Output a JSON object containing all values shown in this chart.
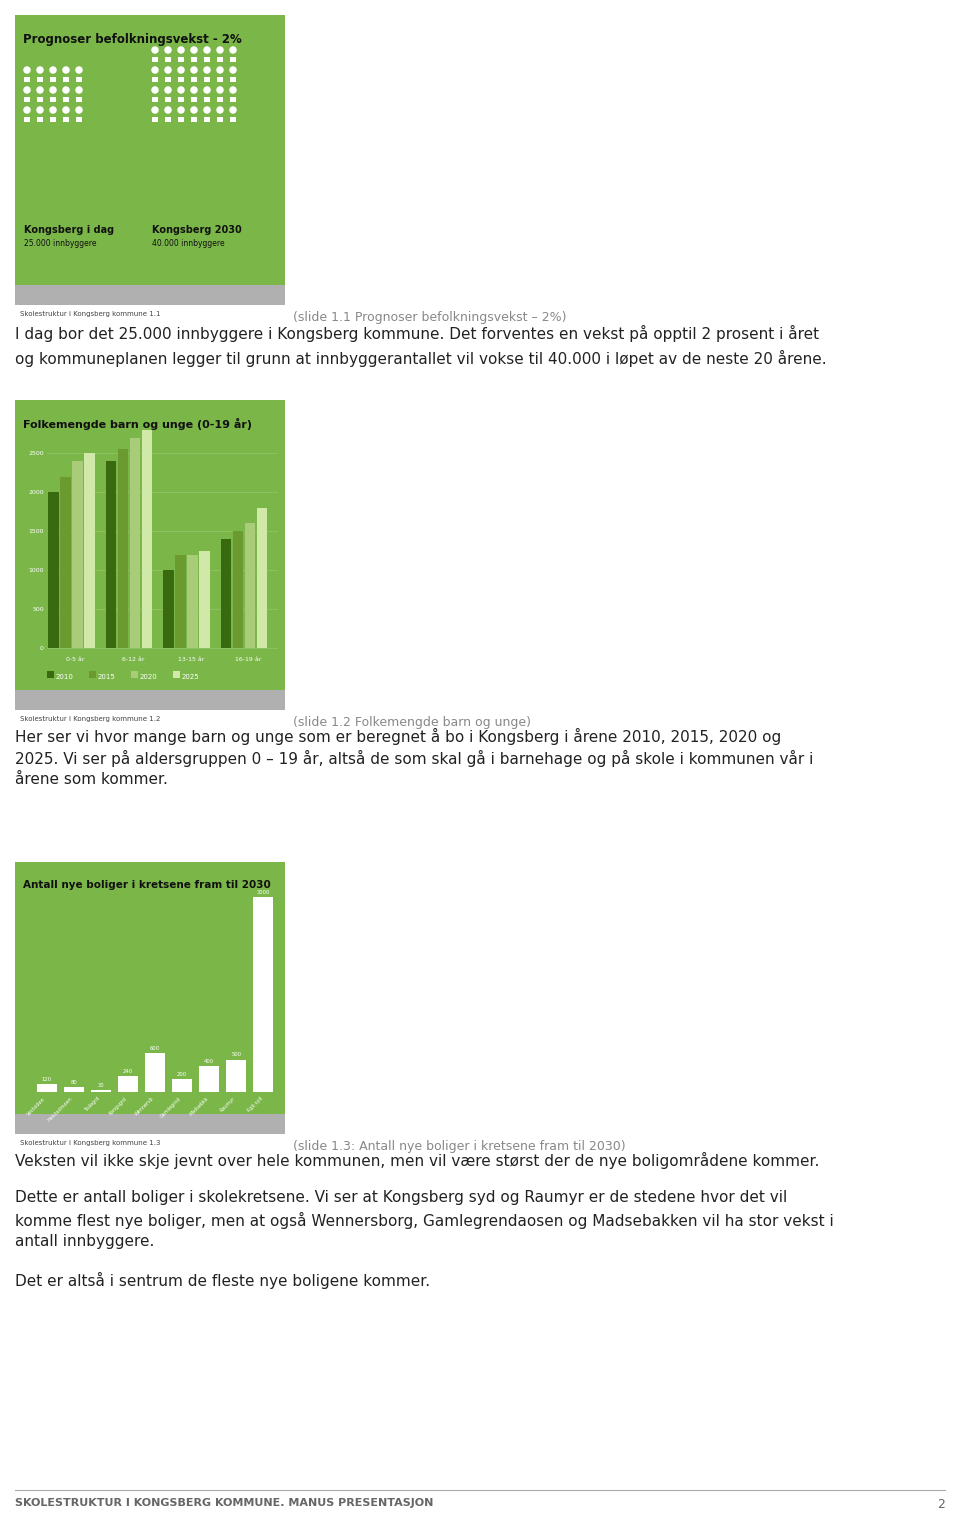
{
  "bg_color": "#ffffff",
  "slide1": {
    "title": "Prognoser befolkningsvekst - 2%",
    "bg_color": "#7ab648",
    "footer_text": "Skolestruktur i Kongsberg kommune 1.1",
    "label1": "Kongsberg i dag",
    "sublabel1": "25.000 innbyggere",
    "label2": "Kongsberg 2030",
    "sublabel2": "40.000 innbyggere"
  },
  "slide1_caption": "(slide 1.1 Prognoser befolkningsvekst – 2%)",
  "text1": "I dag bor det 25.000 innbyggere i Kongsberg kommune. Det forventes en vekst på opptil 2 prosent i året\nog kommuneplanen legger til grunn at innbyggerantallet vil vokse til 40.000 i løpet av de neste 20 årene.",
  "slide2": {
    "title": "Folkemengde barn og unge (0-19 år)",
    "bg_color": "#7ab648",
    "footer_text": "Skolestruktur i Kongsberg kommune 1.2",
    "categories": [
      "0-5 år",
      "6-12 år",
      "13-15 år",
      "16-19 år"
    ],
    "years": [
      "2010",
      "2015",
      "2020",
      "2025"
    ],
    "data": {
      "0-5 år": [
        2000,
        2200,
        2400,
        2500
      ],
      "6-12 år": [
        2400,
        2550,
        2700,
        2800
      ],
      "13-15 år": [
        1000,
        1200,
        1200,
        1250
      ],
      "16-19 år": [
        1400,
        1500,
        1600,
        1800
      ]
    },
    "yticks": [
      0,
      500,
      1000,
      1500,
      2000,
      2500
    ],
    "year_colors": [
      "#3a6a10",
      "#6a9a30",
      "#a8cc78",
      "#d0e8a8"
    ]
  },
  "slide2_caption": "(slide 1.2 Folkemengde barn og unge)",
  "text2a": "Her ser vi hvor mange barn og unge som er beregnet å bo i Kongsberg i årene 2010, 2015, 2020 og",
  "text2b": "2025. Vi ser på aldersgruppen 0 – 19 år, altså de som skal gå i barnehage og på skole i kommunen vår i",
  "text2c": "årene som kommer.",
  "slide3": {
    "title": "Antall nye boliger i kretsene fram til 2030",
    "bg_color": "#7ab648",
    "footer_text": "Skolestruktur i Kongsberg kommune 1.3",
    "values": [
      120,
      80,
      30,
      240,
      600,
      200,
      400,
      500,
      3000
    ],
    "labels": [
      "120",
      "80",
      "30",
      "240",
      "600",
      "200",
      "400",
      "500",
      "3000"
    ],
    "cat_labels": [
      "Vestsiden",
      "Heistadmoen",
      "Tislegrd",
      "Kongsgrd",
      "Wennersb",
      "Gamlegrnd",
      "Madsebkk",
      "Raumyr",
      "Kgb syd"
    ]
  },
  "slide3_caption": "(slide 1.3: Antall nye boliger i kretsene fram til 2030)",
  "text3": "Veksten vil ikke skje jevnt over hele kommunen, men vil være størst der de nye boligområdene kommer.",
  "text4a": "Dette er antall boliger i skolekretsene. Vi ser at Kongsberg syd og Raumyr er de stedene hvor det vil",
  "text4b": "komme flest nye boliger, men at også Wennersborg, Gamlegrendaosen og Madsebakken vil ha stor vekst i",
  "text4c": "antall innbyggere.",
  "text5": "Det er altså i sentrum de fleste nye boligene kommer.",
  "footer_line": "SKOLESTRUKTUR I KONGSBERG KOMMUNE. MANUS PRESENTASJON",
  "footer_page": "2",
  "footer_color": "#b0b0b0",
  "footer_text_color": "#444444",
  "caption_color": "#888888",
  "body_text_color": "#222222"
}
